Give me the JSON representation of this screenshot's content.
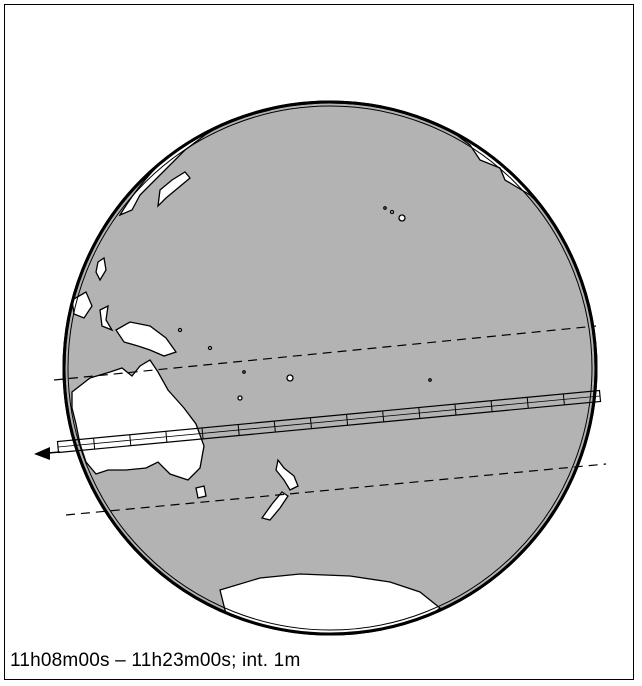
{
  "caption": "11h08m00s – 11h23m00s; int.  1m",
  "colors": {
    "ocean": "#b3b3b3",
    "land": "#ffffff",
    "outline": "#000000"
  },
  "features": {
    "globe": "orthographic-globe-pacific",
    "path": "eclipse-shadow-path",
    "limits": [
      "northern-limit-dashed",
      "southern-limit-dashed"
    ],
    "direction": "westward-arrow"
  },
  "path_intervals": 15
}
